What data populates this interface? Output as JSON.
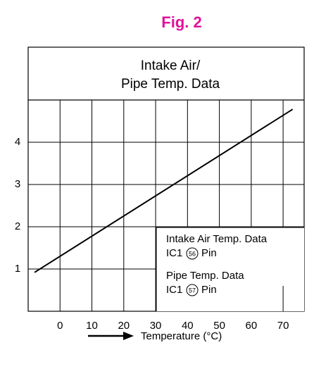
{
  "chart_data": {
    "type": "line",
    "title": "Fig. 2",
    "box_title": [
      "Intake Air/",
      "Pipe Temp. Data"
    ],
    "x": [
      -8,
      73
    ],
    "series": [
      {
        "values": [
          0.92,
          4.78
        ],
        "color": "#000000"
      }
    ],
    "xlim": [
      -10,
      76.6
    ],
    "ylim": [
      0,
      6.25
    ],
    "xticks": [
      0,
      10,
      20,
      30,
      40,
      50,
      60,
      70
    ],
    "yticks": [
      1,
      2,
      3,
      4
    ],
    "grid": true,
    "notes": [
      {
        "text": "Intake Air Temp. Data",
        "chip": "IC1",
        "pin": "56",
        "suffix": "Pin"
      },
      {
        "text": "Pipe Temp. Data",
        "chip": "IC1",
        "pin": "57",
        "suffix": "Pin"
      }
    ],
    "x_label": "Temperature (°C)"
  }
}
